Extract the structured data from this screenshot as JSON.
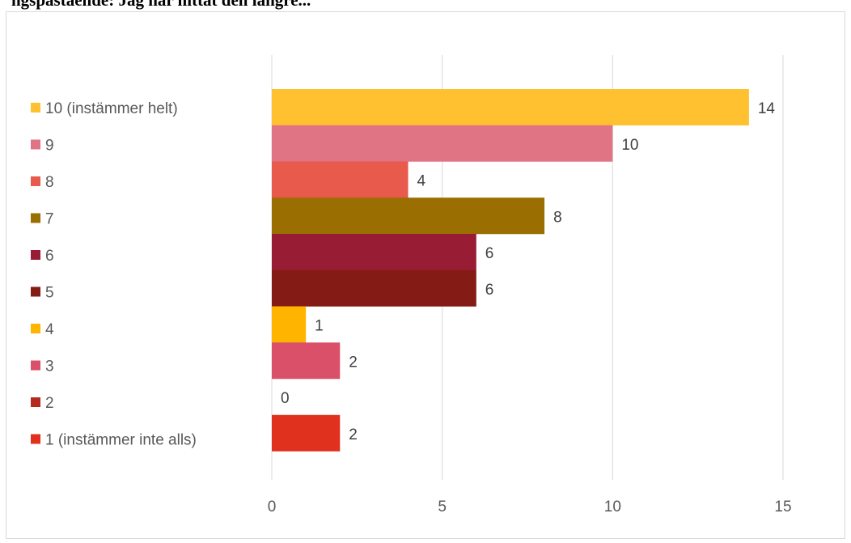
{
  "page_title_partial": "ngspåstående: Jag har hittat den längre...",
  "chart_data": {
    "type": "bar",
    "orientation": "horizontal",
    "title": "",
    "xlabel": "",
    "ylabel": "",
    "xlim": [
      0,
      15
    ],
    "x_ticks": [
      "0",
      "5",
      "10",
      "15"
    ],
    "grid": true,
    "legend_position": "left",
    "series": [
      {
        "name": "10 (instämmer helt)",
        "value": 14,
        "label": "14",
        "color": "#FFC12F"
      },
      {
        "name": "9",
        "value": 10,
        "label": "10",
        "color": "#E17484"
      },
      {
        "name": "8",
        "value": 4,
        "label": "4",
        "color": "#E85A4C"
      },
      {
        "name": "7",
        "value": 8,
        "label": "8",
        "color": "#9A6E00"
      },
      {
        "name": "6",
        "value": 6,
        "label": "6",
        "color": "#991C35"
      },
      {
        "name": "5",
        "value": 6,
        "label": "6",
        "color": "#851B15"
      },
      {
        "name": "4",
        "value": 1,
        "label": "1",
        "color": "#FFB500"
      },
      {
        "name": "3",
        "value": 2,
        "label": "2",
        "color": "#DA5068"
      },
      {
        "name": "2",
        "value": 0,
        "label": "0",
        "color": "#B52A1E"
      },
      {
        "name": "1 (instämmer inte alls)",
        "value": 2,
        "label": "2",
        "color": "#E0301E"
      }
    ]
  }
}
